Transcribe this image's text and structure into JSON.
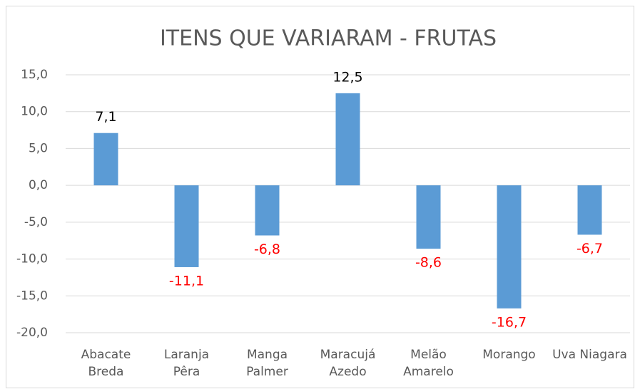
{
  "chart_data": {
    "type": "bar",
    "title": "ITENS QUE VARIARAM - FRUTAS",
    "categories": [
      "Abacate\nBreda",
      "Laranja\nPêra",
      "Manga\nPalmer",
      "Maracujá\nAzedo",
      "Melão\nAmarelo",
      "Morango",
      "Uva Niagara"
    ],
    "values": [
      7.1,
      -11.1,
      -6.8,
      12.5,
      -8.6,
      -16.7,
      -6.7
    ],
    "value_labels": [
      "7,1",
      "-11,1",
      "-6,8",
      "12,5",
      "-8,6",
      "-16,7",
      "-6,7"
    ],
    "color": "#5b9bd5",
    "label_color": "#000000",
    "negative_label_color": "#ff0000",
    "ylim": [
      -20,
      15
    ],
    "yticks": [
      {
        "value": -20,
        "label": "-20,0"
      },
      {
        "value": -15,
        "label": "-15,0"
      },
      {
        "value": -10,
        "label": "-10,0"
      },
      {
        "value": -5,
        "label": "-5,0"
      },
      {
        "value": 0,
        "label": "0,0"
      },
      {
        "value": 5,
        "label": "5,0"
      },
      {
        "value": 10,
        "label": "10,0"
      },
      {
        "value": 15,
        "label": "15,0"
      }
    ],
    "grid": true
  }
}
